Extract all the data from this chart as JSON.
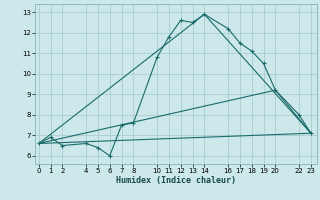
{
  "title": "",
  "xlabel": "Humidex (Indice chaleur)",
  "bg_color": "#cce8ea",
  "grid_color": "#aacdd0",
  "line_color": "#1a6b6b",
  "line1_x": [
    0,
    1,
    2,
    4,
    5,
    6,
    7,
    8,
    10,
    11,
    12,
    13,
    14,
    16,
    17,
    18,
    19,
    20,
    22,
    23
  ],
  "line1_y": [
    6.6,
    6.9,
    6.5,
    6.6,
    6.4,
    6.0,
    7.5,
    7.6,
    10.8,
    11.8,
    12.6,
    12.5,
    12.9,
    12.2,
    11.5,
    11.1,
    10.5,
    9.2,
    8.0,
    7.1
  ],
  "line2_x": [
    0,
    23
  ],
  "line2_y": [
    6.6,
    7.1
  ],
  "line3_x": [
    0,
    14,
    23
  ],
  "line3_y": [
    6.6,
    12.9,
    7.1
  ],
  "line4_x": [
    0,
    20,
    23
  ],
  "line4_y": [
    6.6,
    9.2,
    7.1
  ],
  "xlim": [
    -0.3,
    23.5
  ],
  "ylim": [
    5.6,
    13.4
  ],
  "xticks": [
    0,
    1,
    2,
    4,
    5,
    6,
    7,
    8,
    10,
    11,
    12,
    13,
    14,
    16,
    17,
    18,
    19,
    20,
    22,
    23
  ],
  "yticks": [
    6,
    7,
    8,
    9,
    10,
    11,
    12,
    13
  ],
  "marker": "+"
}
